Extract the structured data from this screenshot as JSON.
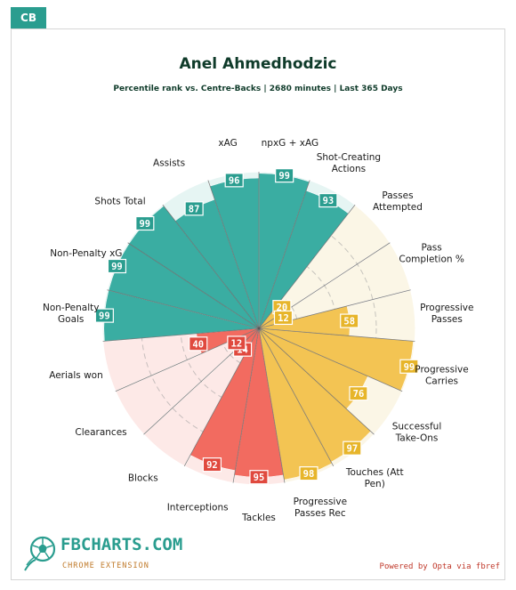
{
  "position_tab": "CB",
  "title": "Anel Ahmedhodzic",
  "subtitle": "Percentile rank vs. Centre-Backs | 2680 minutes | Last 365 Days",
  "brand": {
    "name": "FBCHARTS.COM",
    "tagline": "CHROME EXTENSION",
    "logo_icon": "soccer-ball-icon"
  },
  "powered_by": "Powered by Opta via fbref",
  "colors": {
    "attacking": "#3aada2",
    "attacking_bg": "#e6f5f3",
    "possession": "#f3c453",
    "possession_bg": "#fbf6e6",
    "defending": "#f26b60",
    "defending_bg": "#fde9e7",
    "badge_attacking": "#2a9d8f",
    "badge_possession": "#e7b52a",
    "badge_defending": "#e0493e"
  },
  "chart_data": {
    "type": "polar_bar",
    "range": [
      0,
      100
    ],
    "groups": [
      {
        "name": "attacking",
        "color": "#3aada2"
      },
      {
        "name": "possession",
        "color": "#f3c453"
      },
      {
        "name": "defending",
        "color": "#f26b60"
      }
    ],
    "metrics": [
      {
        "label": "npxG + xAG",
        "value": 99,
        "group": "attacking"
      },
      {
        "label": "Shot-Creating Actions",
        "value": 93,
        "group": "attacking"
      },
      {
        "label": "Passes Attempted",
        "value": 20,
        "group": "possession"
      },
      {
        "label": "Pass Completion %",
        "value": 12,
        "group": "possession"
      },
      {
        "label": "Progressive Passes",
        "value": 58,
        "group": "possession"
      },
      {
        "label": "Progressive Carries",
        "value": 99,
        "group": "possession"
      },
      {
        "label": "Successful Take-Ons",
        "value": 76,
        "group": "possession"
      },
      {
        "label": "Touches (Att Pen)",
        "value": 97,
        "group": "possession"
      },
      {
        "label": "Progressive Passes Rec",
        "value": 98,
        "group": "possession"
      },
      {
        "label": "Tackles",
        "value": 95,
        "group": "defending"
      },
      {
        "label": "Interceptions",
        "value": 92,
        "group": "defending"
      },
      {
        "label": "Blocks",
        "value": 14,
        "group": "defending"
      },
      {
        "label": "Clearances",
        "value": 12,
        "group": "defending"
      },
      {
        "label": "Aerials won",
        "value": 40,
        "group": "defending"
      },
      {
        "label": "Non-Penalty Goals",
        "value": 99,
        "group": "attacking"
      },
      {
        "label": "Non-Penalty xG",
        "value": 99,
        "group": "attacking"
      },
      {
        "label": "Shots Total",
        "value": 99,
        "group": "attacking"
      },
      {
        "label": "Assists",
        "value": 87,
        "group": "attacking"
      },
      {
        "label": "xAG",
        "value": 96,
        "group": "attacking"
      }
    ]
  }
}
